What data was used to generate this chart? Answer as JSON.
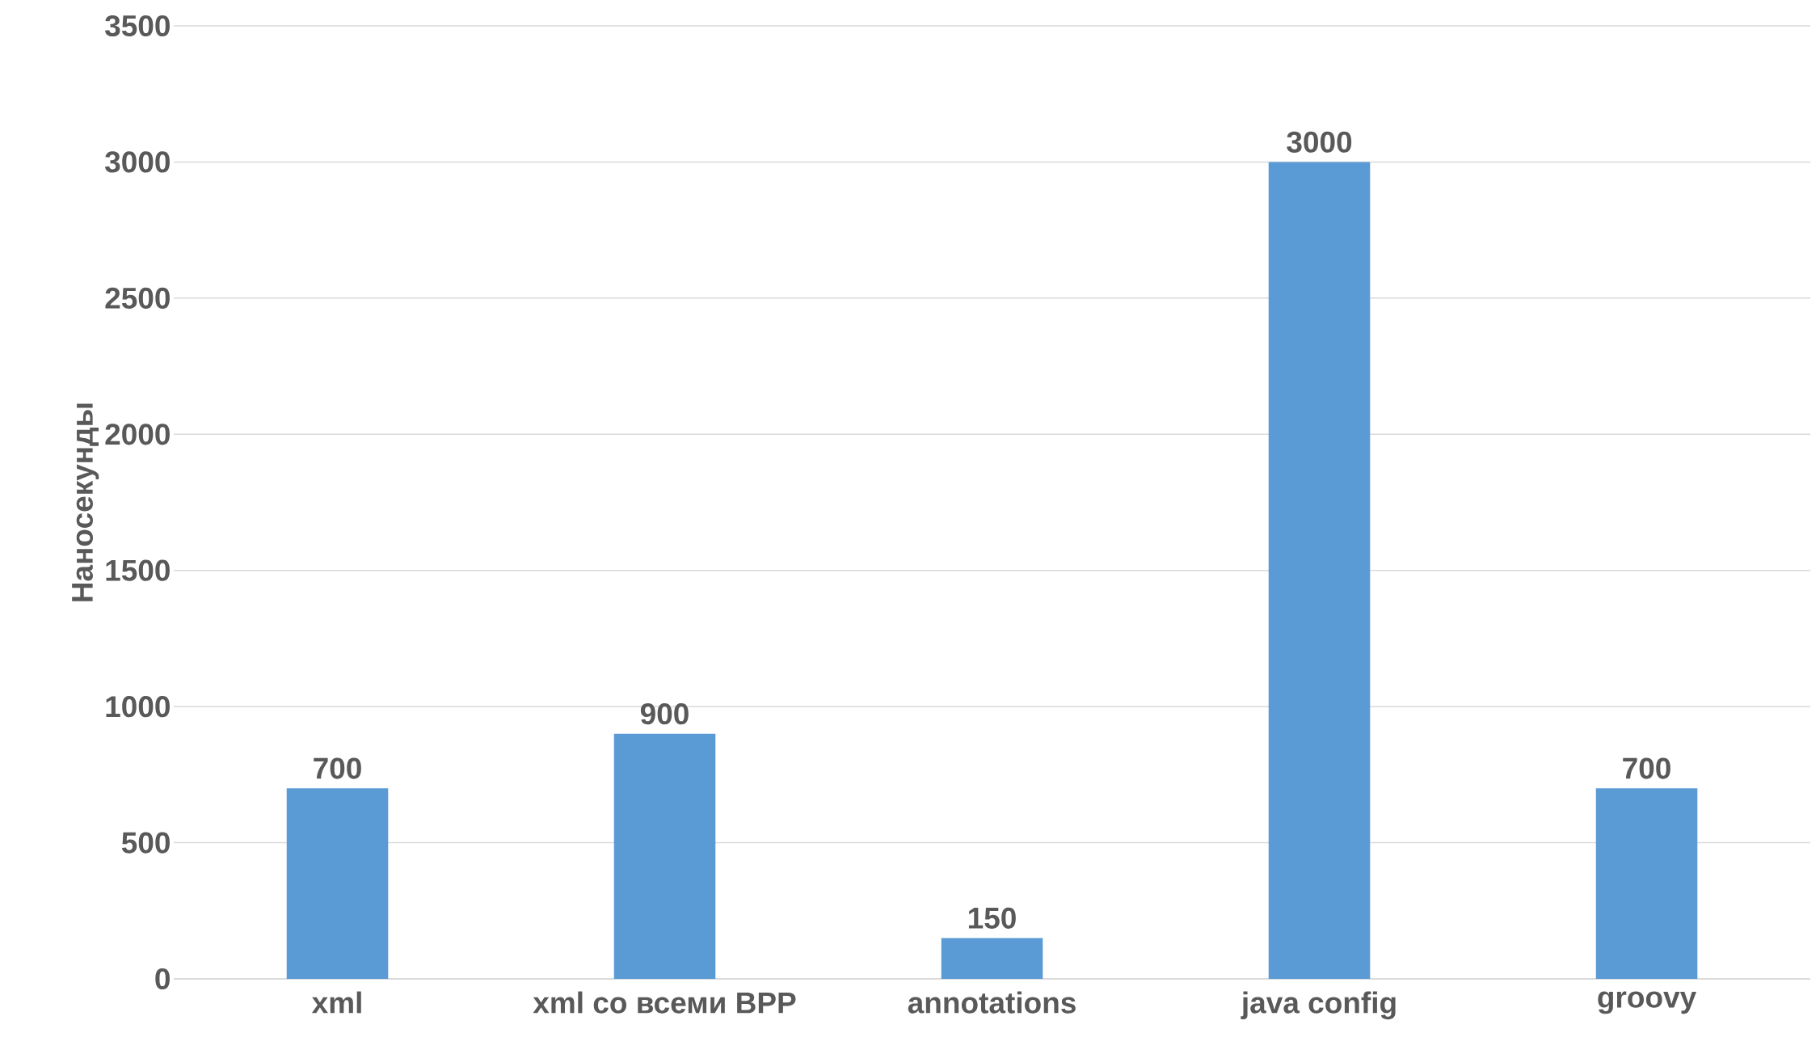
{
  "chart_data": {
    "type": "bar",
    "ylabel": "Наносекунды",
    "categories": [
      "xml",
      "xml со всеми BPP",
      "annotations",
      "java config",
      "groovy"
    ],
    "values": [
      700,
      900,
      150,
      3000,
      700
    ],
    "color": "#5b9bd5",
    "ylim": [
      0,
      3500
    ],
    "yticks": [
      0,
      500,
      1000,
      1500,
      2000,
      2500,
      3000,
      3500
    ],
    "grid": "y",
    "data_labels": true
  }
}
